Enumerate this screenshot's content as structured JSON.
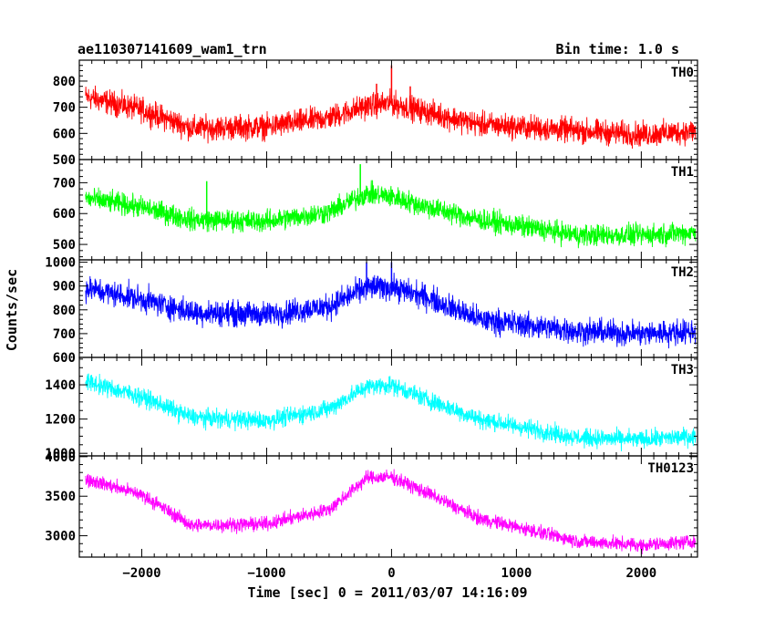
{
  "header": {
    "title": "ae110307141609_wam1_trn",
    "bin_time": "Bin time: 1.0 s"
  },
  "chart_data": {
    "type": "line",
    "x_range": [
      -2500,
      2450
    ],
    "x_ticks": [
      -2000,
      -1000,
      0,
      1000,
      2000
    ],
    "x_tick_labels": [
      "−2000",
      "−1000",
      "0",
      "1000",
      "2000"
    ],
    "xlabel": "Time [sec] 0 = 2011/03/07 14:16:09",
    "ylabel": "Counts/sec",
    "panels": [
      {
        "name": "TH0",
        "color": "#ff0000",
        "ylim": [
          500,
          880
        ],
        "y_ticks": [
          500,
          600,
          700,
          800
        ],
        "shape": [
          [
            -2450,
            740
          ],
          [
            -2000,
            690
          ],
          [
            -1600,
            620
          ],
          [
            -1000,
            625
          ],
          [
            -500,
            660
          ],
          [
            -200,
            705
          ],
          [
            0,
            715
          ],
          [
            300,
            680
          ],
          [
            700,
            635
          ],
          [
            1500,
            610
          ],
          [
            2000,
            595
          ],
          [
            2450,
            610
          ]
        ],
        "noise": 40,
        "spikes": [
          [
            0,
            860
          ],
          [
            -120,
            790
          ],
          [
            150,
            780
          ]
        ]
      },
      {
        "name": "TH1",
        "color": "#00ff00",
        "ylim": [
          450,
          775
        ],
        "y_ticks": [
          500,
          600,
          700
        ],
        "shape": [
          [
            -2450,
            650
          ],
          [
            -2000,
            620
          ],
          [
            -1600,
            580
          ],
          [
            -1000,
            575
          ],
          [
            -500,
            605
          ],
          [
            -200,
            665
          ],
          [
            0,
            655
          ],
          [
            300,
            620
          ],
          [
            700,
            580
          ],
          [
            1500,
            530
          ],
          [
            2000,
            530
          ],
          [
            2450,
            540
          ]
        ],
        "noise": 30,
        "spikes": [
          [
            -1480,
            705
          ],
          [
            -250,
            760
          ]
        ]
      },
      {
        "name": "TH2",
        "color": "#0000ff",
        "ylim": [
          600,
          1010
        ],
        "y_ticks": [
          600,
          700,
          800,
          900,
          1000
        ],
        "shape": [
          [
            -2450,
            890
          ],
          [
            -2000,
            845
          ],
          [
            -1600,
            790
          ],
          [
            -1000,
            780
          ],
          [
            -500,
            815
          ],
          [
            -200,
            895
          ],
          [
            0,
            895
          ],
          [
            300,
            850
          ],
          [
            700,
            760
          ],
          [
            1500,
            710
          ],
          [
            2000,
            700
          ],
          [
            2450,
            710
          ]
        ],
        "noise": 45,
        "spikes": [
          [
            -200,
            1000
          ],
          [
            0,
            1000
          ]
        ]
      },
      {
        "name": "TH3",
        "color": "#00ffff",
        "ylim": [
          985,
          1560
        ],
        "y_ticks": [
          1000,
          1200,
          1400
        ],
        "shape": [
          [
            -2450,
            1420
          ],
          [
            -2000,
            1330
          ],
          [
            -1600,
            1210
          ],
          [
            -1000,
            1190
          ],
          [
            -500,
            1260
          ],
          [
            -200,
            1390
          ],
          [
            0,
            1400
          ],
          [
            300,
            1310
          ],
          [
            700,
            1200
          ],
          [
            1500,
            1090
          ],
          [
            2000,
            1080
          ],
          [
            2450,
            1100
          ]
        ],
        "noise": 45,
        "spikes": []
      },
      {
        "name": "TH0123",
        "color": "#ff00ff",
        "ylim": [
          2730,
          4010
        ],
        "y_ticks": [
          3000,
          3500,
          4000
        ],
        "shape": [
          [
            -2450,
            3720
          ],
          [
            -2000,
            3520
          ],
          [
            -1600,
            3130
          ],
          [
            -1000,
            3150
          ],
          [
            -500,
            3330
          ],
          [
            -200,
            3730
          ],
          [
            0,
            3745
          ],
          [
            300,
            3530
          ],
          [
            700,
            3220
          ],
          [
            1500,
            2930
          ],
          [
            2000,
            2880
          ],
          [
            2450,
            2930
          ]
        ],
        "noise": 75,
        "spikes": []
      }
    ]
  }
}
